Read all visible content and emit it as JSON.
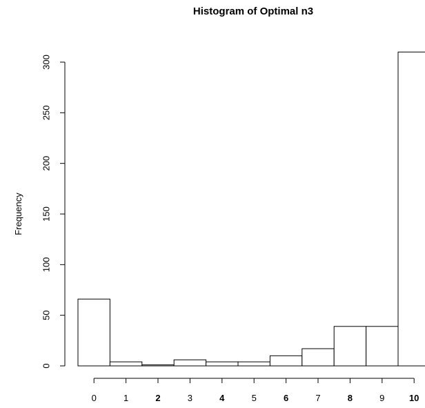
{
  "chart_data": {
    "type": "bar",
    "title": "Histogram of Optimal n3",
    "xlabel": "",
    "ylabel": "Frequency",
    "categories": [
      "0",
      "1",
      "2",
      "3",
      "4",
      "5",
      "6",
      "7",
      "8",
      "9",
      "10"
    ],
    "bold_categories": [
      "2",
      "4",
      "6",
      "8",
      "10"
    ],
    "values": [
      66,
      4,
      1,
      6,
      4,
      4,
      10,
      17,
      39,
      39,
      310
    ],
    "yticks": [
      0,
      50,
      100,
      150,
      200,
      250,
      300
    ],
    "ylim": [
      0,
      310
    ],
    "grid": false,
    "bar_fill": "#ffffff",
    "bar_stroke": "#000000"
  }
}
